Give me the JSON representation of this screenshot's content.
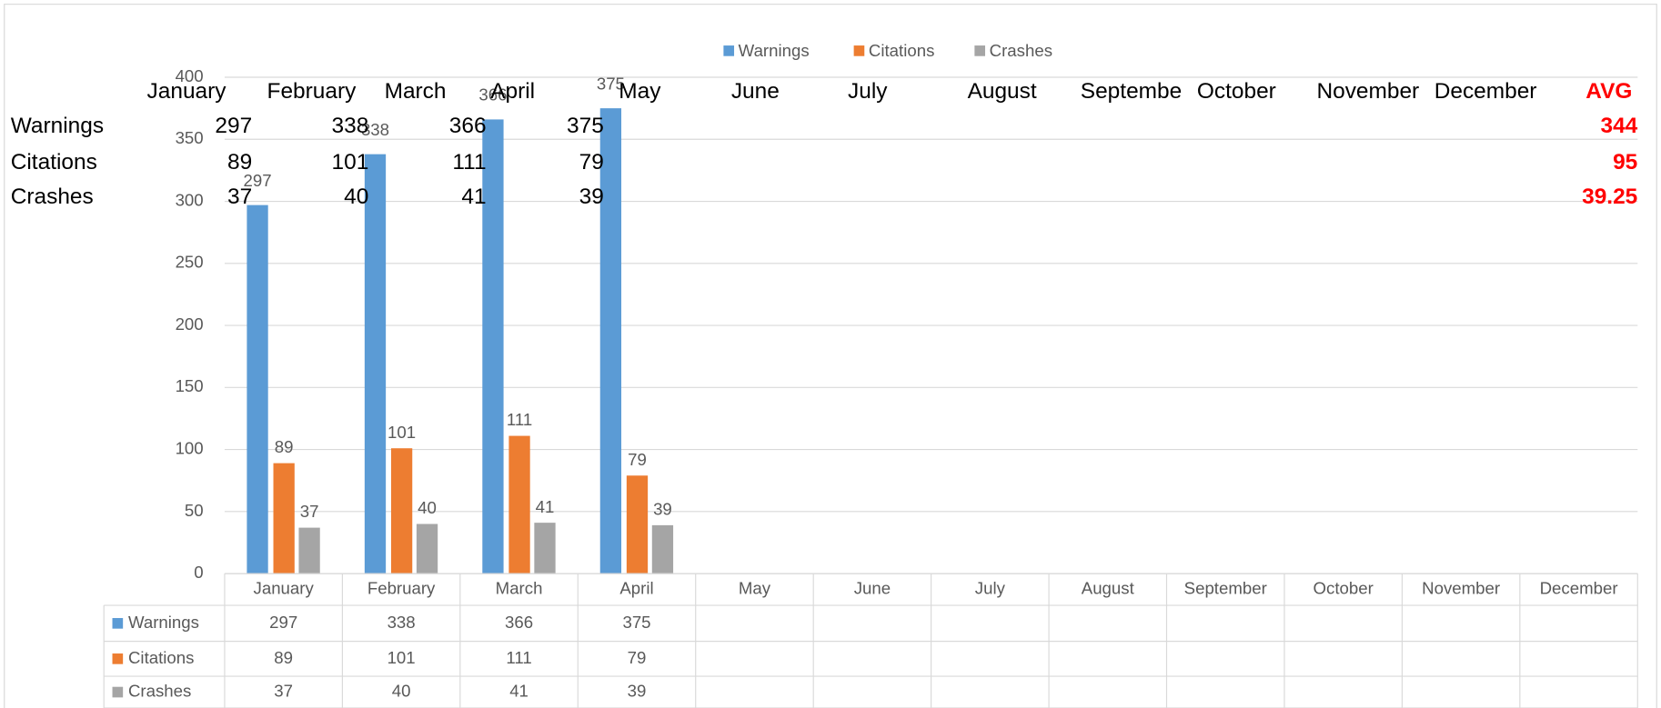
{
  "chart_data": {
    "type": "bar",
    "categories": [
      "January",
      "February",
      "March",
      "April",
      "May",
      "June",
      "July",
      "August",
      "September",
      "October",
      "November",
      "December"
    ],
    "series": [
      {
        "name": "Warnings",
        "color": "#5b9bd5",
        "values": [
          297,
          338,
          366,
          375,
          null,
          null,
          null,
          null,
          null,
          null,
          null,
          null
        ]
      },
      {
        "name": "Citations",
        "color": "#ed7d31",
        "values": [
          89,
          101,
          111,
          79,
          null,
          null,
          null,
          null,
          null,
          null,
          null,
          null
        ]
      },
      {
        "name": "Crashes",
        "color": "#a5a5a5",
        "values": [
          37,
          40,
          41,
          39,
          null,
          null,
          null,
          null,
          null,
          null,
          null,
          null
        ]
      }
    ],
    "ylim": [
      0,
      400
    ],
    "yticks": [
      0,
      50,
      100,
      150,
      200,
      250,
      300,
      350,
      400
    ],
    "grid": true,
    "legend": "top",
    "data_table": true,
    "data_labels": true
  },
  "sheet": {
    "header": [
      "January",
      "February",
      "March",
      "April",
      "May",
      "June",
      "July",
      "August",
      "Septembe",
      "October",
      "November",
      "December",
      "AVG"
    ],
    "rows": [
      {
        "label": "Warnings",
        "values": [
          297,
          338,
          366,
          375
        ],
        "avg": 344
      },
      {
        "label": "Citations",
        "values": [
          89,
          101,
          111,
          79
        ],
        "avg": 95
      },
      {
        "label": "Crashes",
        "values": [
          37,
          40,
          41,
          39
        ],
        "avg": 39.25
      }
    ]
  }
}
